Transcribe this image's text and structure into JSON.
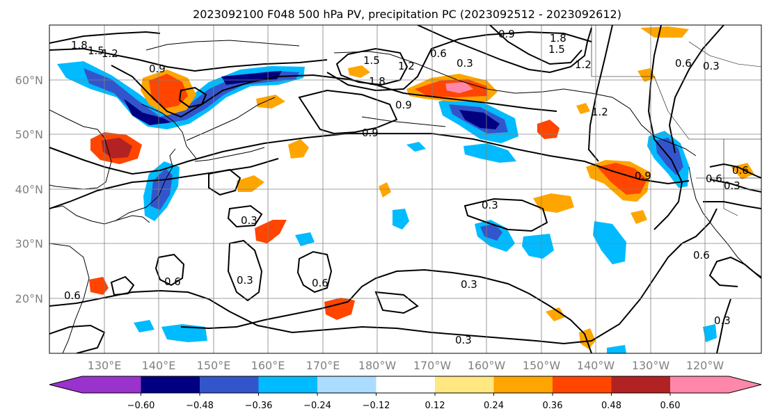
{
  "title": "2023092100 F048 500 hPa PV, precipitation PC (2023092512 - 2023092612)",
  "map": {
    "lon_ticks": [
      "130°E",
      "140°E",
      "150°E",
      "160°E",
      "170°E",
      "180°W",
      "170°W",
      "160°W",
      "150°W",
      "140°W",
      "130°W",
      "120°W"
    ],
    "lat_ticks": [
      "60°N",
      "50°N",
      "40°N",
      "30°N",
      "20°N"
    ],
    "contour_labels": [
      "1.8",
      "1.5",
      "1.2",
      "0.9",
      "1.5",
      "1.8",
      "1.2",
      "0.6",
      "0.3",
      "0.9",
      "1.8",
      "1.5",
      "1.2",
      "0.6",
      "0.3",
      "0.9",
      "0.9",
      "1.2",
      "0.9",
      "0.6",
      "0.6",
      "0.3",
      "0.3",
      "0.6",
      "0.3",
      "0.6",
      "0.3",
      "0.3",
      "0.3",
      "0.6",
      "0.3",
      "0.6"
    ],
    "line_color": "#000000",
    "grid_color": "#808080"
  },
  "colorbar": {
    "colors": [
      "#9933cc",
      "#000080",
      "#3355cc",
      "#00bbff",
      "#aaddff",
      "#ffffff",
      "#ffe880",
      "#ffa500",
      "#ff4500",
      "#b22222",
      "#ff88aa"
    ],
    "tick_labels": [
      "−0.60",
      "−0.48",
      "−0.36",
      "−0.24",
      "−0.12",
      "0.12",
      "0.24",
      "0.36",
      "0.48",
      "0.60"
    ]
  }
}
